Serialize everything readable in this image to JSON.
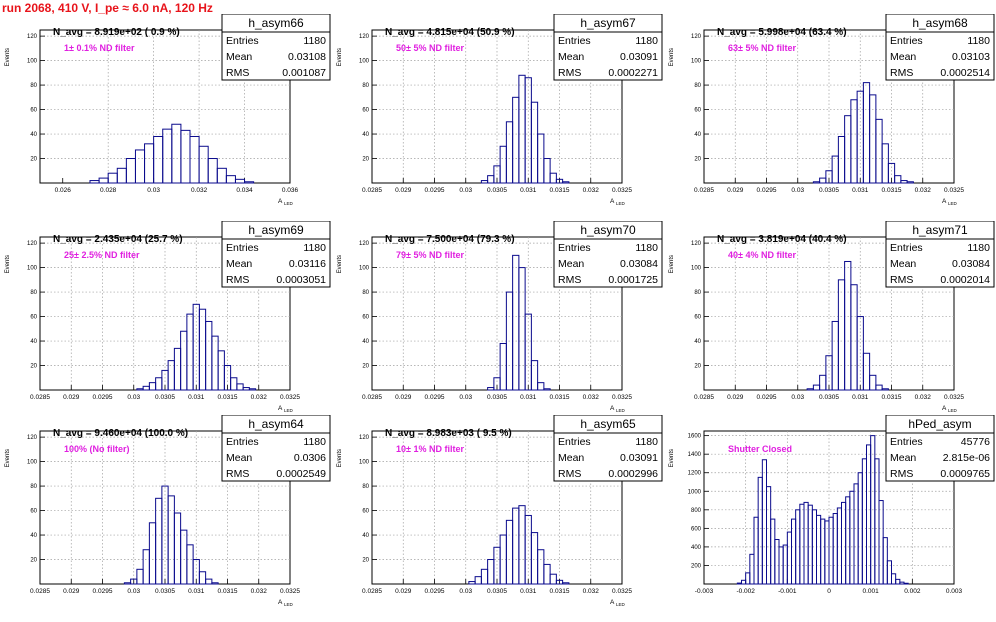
{
  "title": "run 2068,   410 V, I_pe ≈ 6.0 nA, 120 Hz",
  "stats_labels": {
    "entries": "Entries",
    "mean": "Mean",
    "rms": "RMS"
  },
  "colors": {
    "title": "#e8141b",
    "annotation": "#e020e0",
    "hist": "#0a0a8c",
    "grid": "#a0a0a0",
    "text": "#000000"
  },
  "chart_data": [
    {
      "type": "histogram",
      "name": "h_asym66",
      "navg": "N_avg = 8.919e+02 ( 0.9 %)",
      "note": "1± 0.1% ND filter",
      "entries": "1180",
      "mean": "0.03108",
      "rms": "0.001087",
      "ylabel": "Events",
      "xlabel": "A",
      "xlabel_sub": "LED",
      "xlim": [
        0.025,
        0.036
      ],
      "ylim": [
        0,
        125
      ],
      "xticks": [
        "0.026",
        "0.028",
        "0.03",
        "0.032",
        "0.034",
        "0.036"
      ],
      "xtick_values": [
        0.026,
        0.028,
        0.03,
        0.032,
        0.034,
        0.036
      ],
      "yticks": [
        "20",
        "40",
        "60",
        "80",
        "100",
        "120"
      ],
      "ytick_values": [
        20,
        40,
        60,
        80,
        100,
        120
      ],
      "bin_centers": [
        0.0274,
        0.0278,
        0.0282,
        0.0286,
        0.029,
        0.0294,
        0.0298,
        0.0302,
        0.0306,
        0.031,
        0.0314,
        0.0318,
        0.0322,
        0.0326,
        0.033,
        0.0334,
        0.0338,
        0.0342
      ],
      "counts": [
        2,
        4,
        8,
        12,
        20,
        27,
        32,
        38,
        44,
        48,
        43,
        38,
        30,
        20,
        12,
        6,
        3,
        1
      ]
    },
    {
      "type": "histogram",
      "name": "h_asym67",
      "navg": "N_avg = 4.815e+04 (50.9 %)",
      "note": "50± 5% ND filter",
      "entries": "1180",
      "mean": "0.03091",
      "rms": "0.0002271",
      "ylabel": "Events",
      "xlabel": "A",
      "xlabel_sub": "LED",
      "xlim": [
        0.0285,
        0.0325
      ],
      "ylim": [
        0,
        125
      ],
      "xticks": [
        "0.0285",
        "0.029",
        "0.0295",
        "0.03",
        "0.0305",
        "0.031",
        "0.0315",
        "0.032",
        "0.0325"
      ],
      "xtick_values": [
        0.0285,
        0.029,
        0.0295,
        0.03,
        0.0305,
        0.031,
        0.0315,
        0.032,
        0.0325
      ],
      "yticks": [
        "20",
        "40",
        "60",
        "80",
        "100",
        "120"
      ],
      "ytick_values": [
        20,
        40,
        60,
        80,
        100,
        120
      ],
      "bin_centers": [
        0.0303,
        0.0304,
        0.0305,
        0.0306,
        0.0307,
        0.0308,
        0.0309,
        0.031,
        0.0311,
        0.0312,
        0.0313,
        0.0314,
        0.0315,
        0.0316
      ],
      "counts": [
        2,
        6,
        14,
        30,
        50,
        70,
        88,
        86,
        66,
        40,
        20,
        8,
        3,
        1
      ]
    },
    {
      "type": "histogram",
      "name": "h_asym68",
      "navg": "N_avg = 5.998e+04 (63.4 %)",
      "note": "63± 5% ND filter",
      "entries": "1180",
      "mean": "0.03103",
      "rms": "0.0002514",
      "ylabel": "Events",
      "xlabel": "A",
      "xlabel_sub": "LED",
      "xlim": [
        0.0285,
        0.0325
      ],
      "ylim": [
        0,
        125
      ],
      "xticks": [
        "0.0285",
        "0.029",
        "0.0295",
        "0.03",
        "0.0305",
        "0.031",
        "0.0315",
        "0.032",
        "0.0325"
      ],
      "xtick_values": [
        0.0285,
        0.029,
        0.0295,
        0.03,
        0.0305,
        0.031,
        0.0315,
        0.032,
        0.0325
      ],
      "yticks": [
        "20",
        "40",
        "60",
        "80",
        "100",
        "120"
      ],
      "ytick_values": [
        20,
        40,
        60,
        80,
        100,
        120
      ],
      "bin_centers": [
        0.0303,
        0.0304,
        0.0305,
        0.0306,
        0.0307,
        0.0308,
        0.0309,
        0.031,
        0.0311,
        0.0312,
        0.0313,
        0.0314,
        0.0315,
        0.0316,
        0.0317,
        0.0318
      ],
      "counts": [
        1,
        4,
        10,
        22,
        38,
        55,
        68,
        75,
        82,
        72,
        52,
        32,
        16,
        6,
        2,
        1
      ]
    },
    {
      "type": "histogram",
      "name": "h_asym69",
      "navg": "N_avg = 2.435e+04 (25.7 %)",
      "note": "25± 2.5% ND filter",
      "entries": "1180",
      "mean": "0.03116",
      "rms": "0.0003051",
      "ylabel": "Events",
      "xlabel": "A",
      "xlabel_sub": "LED",
      "xlim": [
        0.0285,
        0.0325
      ],
      "ylim": [
        0,
        125
      ],
      "xticks": [
        "0.0285",
        "0.029",
        "0.0295",
        "0.03",
        "0.0305",
        "0.031",
        "0.0315",
        "0.032",
        "0.0325"
      ],
      "xtick_values": [
        0.0285,
        0.029,
        0.0295,
        0.03,
        0.0305,
        0.031,
        0.0315,
        0.032,
        0.0325
      ],
      "yticks": [
        "20",
        "40",
        "60",
        "80",
        "100",
        "120"
      ],
      "ytick_values": [
        20,
        40,
        60,
        80,
        100,
        120
      ],
      "bin_centers": [
        0.0301,
        0.0302,
        0.0303,
        0.0304,
        0.0305,
        0.0306,
        0.0307,
        0.0308,
        0.0309,
        0.031,
        0.0311,
        0.0312,
        0.0313,
        0.0314,
        0.0315,
        0.0316,
        0.0317,
        0.0318,
        0.0319
      ],
      "counts": [
        1,
        3,
        6,
        10,
        16,
        24,
        34,
        48,
        62,
        70,
        66,
        56,
        44,
        32,
        20,
        10,
        5,
        2,
        1
      ]
    },
    {
      "type": "histogram",
      "name": "h_asym70",
      "navg": "N_avg = 7.500e+04 (79.3 %)",
      "note": "79± 5% ND filter",
      "entries": "1180",
      "mean": "0.03084",
      "rms": "0.0001725",
      "ylabel": "Events",
      "xlabel": "A",
      "xlabel_sub": "LED",
      "xlim": [
        0.0285,
        0.0325
      ],
      "ylim": [
        0,
        125
      ],
      "xticks": [
        "0.0285",
        "0.029",
        "0.0295",
        "0.03",
        "0.0305",
        "0.031",
        "0.0315",
        "0.032",
        "0.0325"
      ],
      "xtick_values": [
        0.0285,
        0.029,
        0.0295,
        0.03,
        0.0305,
        0.031,
        0.0315,
        0.032,
        0.0325
      ],
      "yticks": [
        "20",
        "40",
        "60",
        "80",
        "100",
        "120"
      ],
      "ytick_values": [
        20,
        40,
        60,
        80,
        100,
        120
      ],
      "bin_centers": [
        0.0304,
        0.0305,
        0.0306,
        0.0307,
        0.0308,
        0.0309,
        0.031,
        0.0311,
        0.0312,
        0.0313
      ],
      "counts": [
        2,
        10,
        38,
        80,
        110,
        100,
        62,
        24,
        6,
        1
      ]
    },
    {
      "type": "histogram",
      "name": "h_asym71",
      "navg": "N_avg = 3.819e+04 (40.4 %)",
      "note": "40± 4% ND filter",
      "entries": "1180",
      "mean": "0.03084",
      "rms": "0.0002014",
      "ylabel": "Events",
      "xlabel": "A",
      "xlabel_sub": "LED",
      "xlim": [
        0.0285,
        0.0325
      ],
      "ylim": [
        0,
        125
      ],
      "xticks": [
        "0.0285",
        "0.029",
        "0.0295",
        "0.03",
        "0.0305",
        "0.031",
        "0.0315",
        "0.032",
        "0.0325"
      ],
      "xtick_values": [
        0.0285,
        0.029,
        0.0295,
        0.03,
        0.0305,
        0.031,
        0.0315,
        0.032,
        0.0325
      ],
      "yticks": [
        "20",
        "40",
        "60",
        "80",
        "100",
        "120"
      ],
      "ytick_values": [
        20,
        40,
        60,
        80,
        100,
        120
      ],
      "bin_centers": [
        0.0302,
        0.0303,
        0.0304,
        0.0305,
        0.0306,
        0.0307,
        0.0308,
        0.0309,
        0.031,
        0.0311,
        0.0312,
        0.0313,
        0.0314
      ],
      "counts": [
        1,
        4,
        12,
        28,
        56,
        90,
        105,
        86,
        60,
        30,
        12,
        4,
        1
      ]
    },
    {
      "type": "histogram",
      "name": "h_asym64",
      "navg": "N_avg = 9.460e+04 (100.0 %)",
      "note": "100% (No filter)",
      "entries": "1180",
      "mean": "0.0306",
      "rms": "0.0002549",
      "ylabel": "Events",
      "xlabel": "A",
      "xlabel_sub": "LED",
      "xlim": [
        0.0285,
        0.0325
      ],
      "ylim": [
        0,
        125
      ],
      "xticks": [
        "0.0285",
        "0.029",
        "0.0295",
        "0.03",
        "0.0305",
        "0.031",
        "0.0315",
        "0.032",
        "0.0325"
      ],
      "xtick_values": [
        0.0285,
        0.029,
        0.0295,
        0.03,
        0.0305,
        0.031,
        0.0315,
        0.032,
        0.0325
      ],
      "yticks": [
        "20",
        "40",
        "60",
        "80",
        "100",
        "120"
      ],
      "ytick_values": [
        20,
        40,
        60,
        80,
        100,
        120
      ],
      "bin_centers": [
        0.0299,
        0.03,
        0.0301,
        0.0302,
        0.0303,
        0.0304,
        0.0305,
        0.0306,
        0.0307,
        0.0308,
        0.0309,
        0.031,
        0.0311,
        0.0312,
        0.0313
      ],
      "counts": [
        1,
        4,
        12,
        28,
        50,
        70,
        80,
        72,
        58,
        44,
        32,
        20,
        10,
        4,
        1
      ]
    },
    {
      "type": "histogram",
      "name": "h_asym65",
      "navg": "N_avg = 8.983e+03 ( 9.5 %)",
      "note": "10± 1% ND filter",
      "entries": "1180",
      "mean": "0.03091",
      "rms": "0.0002996",
      "ylabel": "Events",
      "xlabel": "A",
      "xlabel_sub": "LED",
      "xlim": [
        0.0285,
        0.0325
      ],
      "ylim": [
        0,
        125
      ],
      "xticks": [
        "0.0285",
        "0.029",
        "0.0295",
        "0.03",
        "0.0305",
        "0.031",
        "0.0315",
        "0.032",
        "0.0325"
      ],
      "xtick_values": [
        0.0285,
        0.029,
        0.0295,
        0.03,
        0.0305,
        0.031,
        0.0315,
        0.032,
        0.0325
      ],
      "yticks": [
        "20",
        "40",
        "60",
        "80",
        "100",
        "120"
      ],
      "ytick_values": [
        20,
        40,
        60,
        80,
        100,
        120
      ],
      "bin_centers": [
        0.0301,
        0.0302,
        0.0303,
        0.0304,
        0.0305,
        0.0306,
        0.0307,
        0.0308,
        0.0309,
        0.031,
        0.0311,
        0.0312,
        0.0313,
        0.0314,
        0.0315,
        0.0316
      ],
      "counts": [
        2,
        6,
        12,
        20,
        30,
        40,
        52,
        62,
        64,
        56,
        42,
        28,
        16,
        8,
        3,
        1
      ]
    },
    {
      "type": "histogram",
      "name": "hPed_asym",
      "navg": "",
      "note": "Shutter Closed",
      "entries": "45776",
      "mean": "2.815e-06",
      "rms": "0.0009765",
      "ylabel": "Events",
      "xlabel": "",
      "xlabel_sub": "",
      "xlim": [
        -0.003,
        0.003
      ],
      "ylim": [
        0,
        1650
      ],
      "xticks": [
        "-0.003",
        "-0.002",
        "-0.001",
        "0",
        "0.001",
        "0.002",
        "0.003"
      ],
      "xtick_values": [
        -0.003,
        -0.002,
        -0.001,
        0,
        0.001,
        0.002,
        0.003
      ],
      "yticks": [
        "200",
        "400",
        "600",
        "800",
        "1000",
        "1200",
        "1400",
        "1600"
      ],
      "ytick_values": [
        200,
        400,
        600,
        800,
        1000,
        1200,
        1400,
        1600
      ],
      "bin_centers": [
        -0.00215,
        -0.00205,
        -0.00195,
        -0.00185,
        -0.00175,
        -0.00165,
        -0.00155,
        -0.00145,
        -0.00135,
        -0.00125,
        -0.00115,
        -0.00105,
        -0.00095,
        -0.00085,
        -0.00075,
        -0.00065,
        -0.00055,
        -0.00045,
        -0.00035,
        -0.00025,
        -0.00015,
        -5e-05,
        5e-05,
        0.00015,
        0.00025,
        0.00035,
        0.00045,
        0.00055,
        0.00065,
        0.00075,
        0.00085,
        0.00095,
        0.00105,
        0.00115,
        0.00125,
        0.00135,
        0.00145,
        0.00155,
        0.00165,
        0.00175,
        0.00185
      ],
      "counts": [
        10,
        40,
        120,
        320,
        720,
        1150,
        1340,
        1050,
        700,
        480,
        400,
        420,
        560,
        700,
        800,
        860,
        880,
        850,
        800,
        740,
        700,
        680,
        720,
        760,
        820,
        880,
        940,
        1000,
        1080,
        1200,
        1350,
        1500,
        1600,
        1350,
        900,
        500,
        250,
        110,
        50,
        20,
        8
      ]
    }
  ]
}
